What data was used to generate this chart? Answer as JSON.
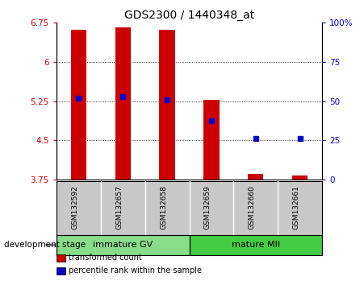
{
  "title": "GDS2300 / 1440348_at",
  "samples": [
    "GSM132592",
    "GSM132657",
    "GSM132658",
    "GSM132659",
    "GSM132660",
    "GSM132661"
  ],
  "bar_values": [
    6.62,
    6.67,
    6.62,
    5.27,
    3.86,
    3.83
  ],
  "percentile_values": [
    5.3,
    5.33,
    5.28,
    4.88,
    4.54,
    4.54
  ],
  "bar_color": "#cc0000",
  "percentile_color": "#0000cc",
  "ylim_left": [
    3.75,
    6.75
  ],
  "yticks_left": [
    3.75,
    4.5,
    5.25,
    6.0,
    6.75
  ],
  "ytick_labels_left": [
    "3.75",
    "4.5",
    "5.25",
    "6",
    "6.75"
  ],
  "ylim_right": [
    0,
    100
  ],
  "yticks_right": [
    0,
    25,
    50,
    75,
    100
  ],
  "ytick_labels_right": [
    "0",
    "25",
    "50",
    "75",
    "100%"
  ],
  "groups": [
    {
      "label": "immature GV",
      "indices": [
        0,
        1,
        2
      ],
      "color": "#88dd88"
    },
    {
      "label": "mature MII",
      "indices": [
        3,
        4,
        5
      ],
      "color": "#44cc44"
    }
  ],
  "group_label": "development stage",
  "legend_items": [
    {
      "label": "transformed count",
      "color": "#cc0000"
    },
    {
      "label": "percentile rank within the sample",
      "color": "#0000cc"
    }
  ],
  "bar_width": 0.35,
  "dotted_gridlines": [
    4.5,
    5.25,
    6.0
  ],
  "background_plot": "#ffffff",
  "background_label": "#c8c8c8",
  "left_tick_color": "#cc0000",
  "right_tick_color": "#0000cc"
}
